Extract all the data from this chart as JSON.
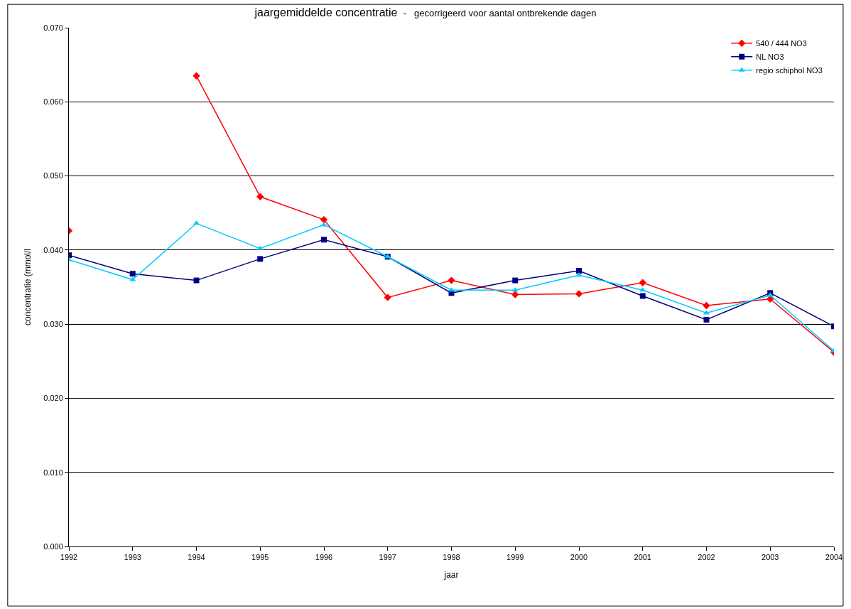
{
  "chart_data": {
    "type": "line",
    "title": "jaargemiddelde concentratie",
    "subtitle": "-   gecorrigeerd voor aantal ontbrekende dagen",
    "xlabel": "jaar",
    "ylabel": "concentratie (mmol/l",
    "x": [
      1992,
      1993,
      1994,
      1995,
      1996,
      1997,
      1998,
      1999,
      2000,
      2001,
      2002,
      2003,
      2004
    ],
    "series": [
      {
        "name": "540 / 444 NO3",
        "color": "#ff0000",
        "marker": "diamond",
        "values": [
          0.0426,
          null,
          0.0635,
          0.0472,
          0.0441,
          0.0336,
          0.0359,
          0.034,
          0.0341,
          0.0356,
          0.0325,
          0.0334,
          0.0262
        ]
      },
      {
        "name": "NL NO3",
        "color": "#000080",
        "marker": "square",
        "values": [
          0.0393,
          0.0368,
          0.0359,
          0.0388,
          0.0414,
          0.0391,
          0.0342,
          0.0359,
          0.0372,
          0.0338,
          0.0306,
          0.0342,
          0.0297
        ]
      },
      {
        "name": "regio schiphol NO3",
        "color": "#00ccff",
        "marker": "triangle",
        "values": [
          0.0387,
          0.036,
          0.0436,
          0.0402,
          0.0434,
          0.0391,
          0.0346,
          0.0346,
          0.0366,
          0.0346,
          0.0315,
          0.0339,
          0.0264
        ]
      }
    ],
    "xlim": [
      1992,
      2004
    ],
    "xticks": [
      1992,
      1993,
      1994,
      1995,
      1996,
      1997,
      1998,
      1999,
      2000,
      2001,
      2002,
      2003,
      2004
    ],
    "ylim": [
      0,
      0.07
    ],
    "yticks": [
      {
        "value": 0,
        "label": "0.000"
      },
      {
        "value": 0.01,
        "label": "0.010"
      },
      {
        "value": 0.02,
        "label": "0.020"
      },
      {
        "value": 0.03,
        "label": "0.030"
      },
      {
        "value": 0.04,
        "label": "0.040"
      },
      {
        "value": 0.05,
        "label": "0.050"
      },
      {
        "value": 0.06,
        "label": "0.060"
      },
      {
        "value": 0.07,
        "label": "0.070"
      }
    ],
    "grid": "y",
    "legend": "top right",
    "line_style": "solid"
  }
}
